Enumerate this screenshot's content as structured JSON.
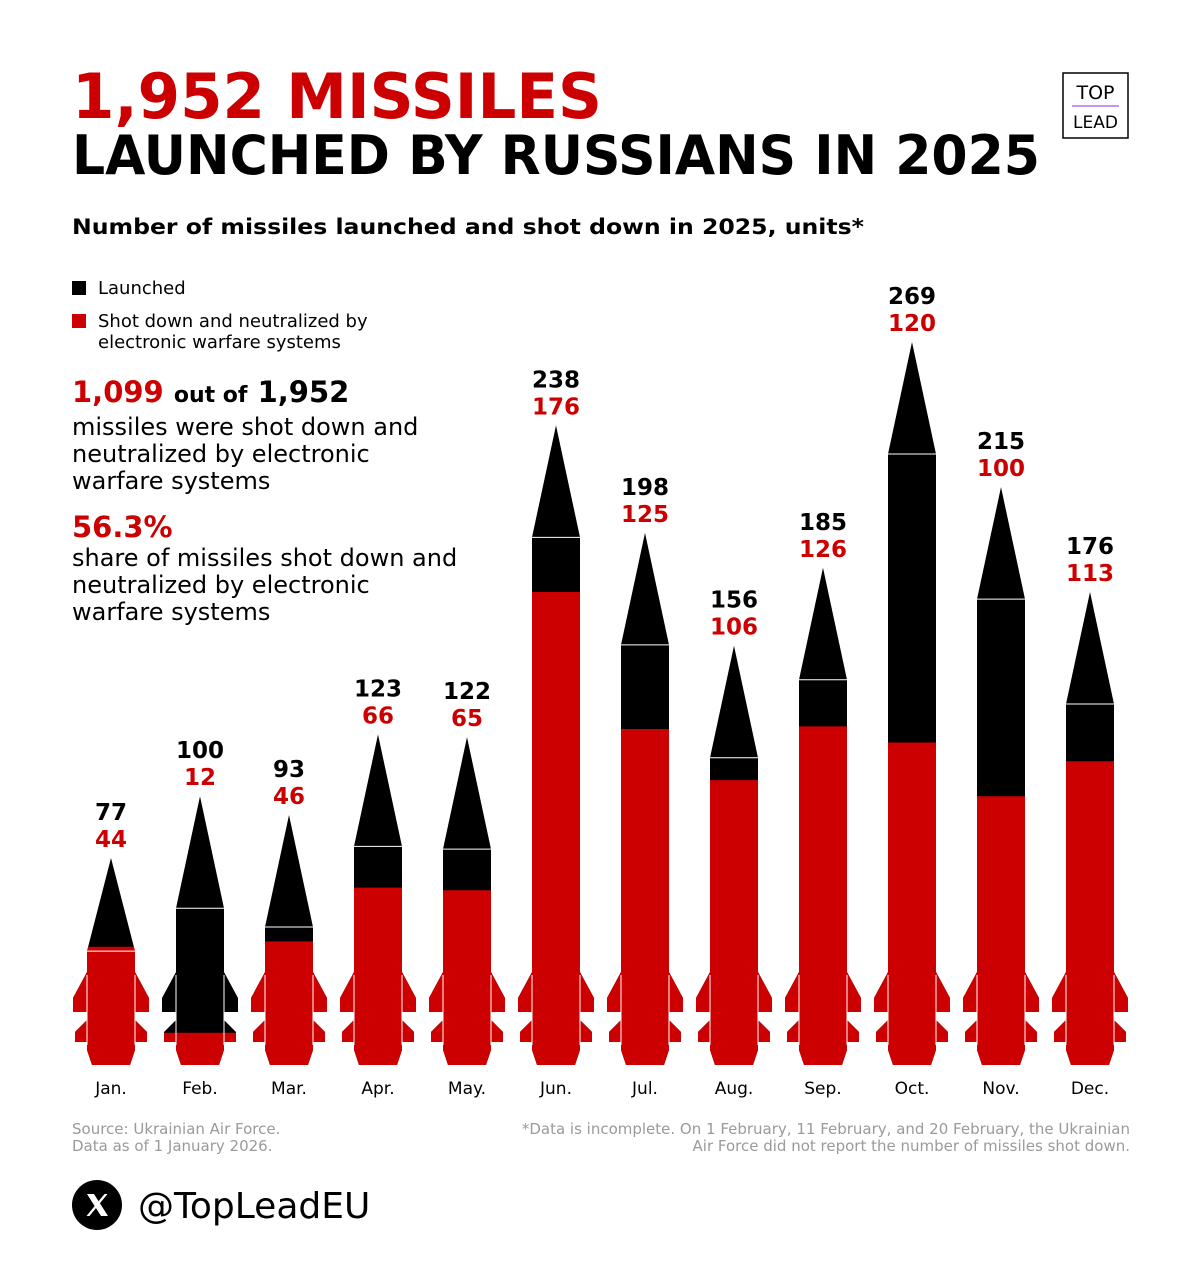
{
  "header": {
    "title_line1": "1,952 MISSILES",
    "title_line2": "LAUNCHED BY RUSSIANS IN 2025"
  },
  "logo": {
    "top": "TOP",
    "bottom": "LEAD"
  },
  "chart_data": {
    "type": "bar",
    "subtitle": "Number of missiles launched and shot down in 2025, units*",
    "categories": [
      "Jan.",
      "Feb.",
      "Mar.",
      "Apr.",
      "May.",
      "Jun.",
      "Jul.",
      "Aug.",
      "Sep.",
      "Oct.",
      "Nov.",
      "Dec."
    ],
    "series": [
      {
        "name": "Launched",
        "color": "#000000",
        "values": [
          77,
          100,
          93,
          123,
          122,
          238,
          198,
          156,
          185,
          269,
          215,
          176
        ]
      },
      {
        "name": "Shot down and neutralized by electronic warfare systems",
        "color": "#cc0000",
        "values": [
          44,
          12,
          46,
          66,
          65,
          176,
          125,
          106,
          126,
          120,
          100,
          113
        ]
      }
    ],
    "annotations": [
      {
        "highlight": "1,099",
        "connector": "out of",
        "total": "1,952",
        "text": "missiles were shot down and neutralized by electronic warfare systems"
      },
      {
        "highlight": "56.3%",
        "text": "share of missiles shot down and neutralized by electronic warfare systems"
      }
    ],
    "source": "Source: Ukrainian Air Force. Data as of 1 January 2026.",
    "note": "*Data is incomplete. On 1 February, 11 February, and 20 February, the Ukrainian Air Force did not report the number of missiles shot down."
  },
  "footer": {
    "handle": "@TopLeadEU"
  }
}
